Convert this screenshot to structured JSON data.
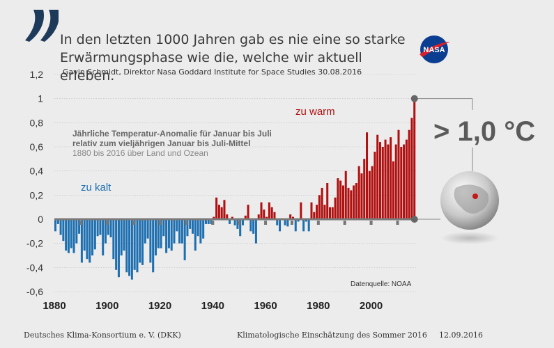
{
  "quote": {
    "line1": "In den letzten 1000 Jahren gab es nie eine so starke",
    "line2": "Erwärmungsphase wie die, welche wir aktuell erleben.",
    "source": "Gavin Schmidt, Direktor Nasa Goddard Institute for Space Studies 30.08.2016"
  },
  "logo": {
    "text": "NASA"
  },
  "callout": {
    "text": "> 1,0 °C"
  },
  "footer": {
    "left": "Deutsches Klima-Konsortium e. V. (DKK)",
    "center": "Klimatologische Einschätzung des Sommer 2016",
    "right": "12.09.2016"
  },
  "chart_data": {
    "type": "bar",
    "title_line1": "Jährliche Temperatur-Anomalie für Januar bis Juli",
    "title_line2": "relativ zum vieljährigen Januar bis Juli-Mittel",
    "subtitle": "1880 bis 2016 über Land und Ozean",
    "source_note": "Datenquelle: NOAA",
    "label_warm": "zu warm",
    "label_cold": "zu kalt",
    "ylim": [
      -0.6,
      1.2
    ],
    "yticks": [
      -0.6,
      -0.4,
      -0.2,
      0,
      0.2,
      0.4,
      0.6,
      0.8,
      1,
      1.2
    ],
    "ytick_labels": [
      "-0,6",
      "-0,4",
      "-0,2",
      "0",
      "0,2",
      "0,4",
      "0,6",
      "0,8",
      "1",
      "1,2"
    ],
    "xlim": [
      1880,
      2016
    ],
    "xticks": [
      1880,
      1900,
      1920,
      1940,
      1960,
      1980,
      2000
    ],
    "xtick_labels": [
      "1880",
      "1900",
      "1920",
      "1940",
      "1960",
      "1980",
      "2000"
    ],
    "grid": true,
    "colors": {
      "positive": "#b01010",
      "negative": "#1e6fb0",
      "axis": "#555555"
    },
    "x": [
      1880,
      1881,
      1882,
      1883,
      1884,
      1885,
      1886,
      1887,
      1888,
      1889,
      1890,
      1891,
      1892,
      1893,
      1894,
      1895,
      1896,
      1897,
      1898,
      1899,
      1900,
      1901,
      1902,
      1903,
      1904,
      1905,
      1906,
      1907,
      1908,
      1909,
      1910,
      1911,
      1912,
      1913,
      1914,
      1915,
      1916,
      1917,
      1918,
      1919,
      1920,
      1921,
      1922,
      1923,
      1924,
      1925,
      1926,
      1927,
      1928,
      1929,
      1930,
      1931,
      1932,
      1933,
      1934,
      1935,
      1936,
      1937,
      1938,
      1939,
      1940,
      1941,
      1942,
      1943,
      1944,
      1945,
      1946,
      1947,
      1948,
      1949,
      1950,
      1951,
      1952,
      1953,
      1954,
      1955,
      1956,
      1957,
      1958,
      1959,
      1960,
      1961,
      1962,
      1963,
      1964,
      1965,
      1966,
      1967,
      1968,
      1969,
      1970,
      1971,
      1972,
      1973,
      1974,
      1975,
      1976,
      1977,
      1978,
      1979,
      1980,
      1981,
      1982,
      1983,
      1984,
      1985,
      1986,
      1987,
      1988,
      1989,
      1990,
      1991,
      1992,
      1993,
      1994,
      1995,
      1996,
      1997,
      1998,
      1999,
      2000,
      2001,
      2002,
      2003,
      2004,
      2005,
      2006,
      2007,
      2008,
      2009,
      2010,
      2011,
      2012,
      2013,
      2014,
      2015,
      2016
    ],
    "values": [
      -0.1,
      -0.04,
      -0.13,
      -0.18,
      -0.26,
      -0.28,
      -0.24,
      -0.28,
      -0.2,
      -0.12,
      -0.36,
      -0.26,
      -0.33,
      -0.36,
      -0.3,
      -0.25,
      -0.14,
      -0.13,
      -0.3,
      -0.2,
      -0.13,
      -0.15,
      -0.33,
      -0.42,
      -0.48,
      -0.3,
      -0.26,
      -0.44,
      -0.47,
      -0.5,
      -0.42,
      -0.44,
      -0.36,
      -0.38,
      -0.2,
      -0.16,
      -0.36,
      -0.44,
      -0.3,
      -0.24,
      -0.24,
      -0.14,
      -0.28,
      -0.24,
      -0.26,
      -0.2,
      -0.1,
      -0.2,
      -0.2,
      -0.34,
      -0.14,
      -0.08,
      -0.12,
      -0.26,
      -0.14,
      -0.2,
      -0.16,
      -0.04,
      -0.04,
      -0.04,
      0.02,
      0.18,
      0.12,
      0.1,
      0.16,
      0.04,
      -0.04,
      0.02,
      -0.05,
      -0.08,
      -0.14,
      -0.05,
      0.03,
      0.12,
      -0.1,
      -0.12,
      -0.2,
      0.04,
      0.14,
      0.08,
      0.02,
      0.14,
      0.1,
      0.06,
      -0.05,
      -0.1,
      0.0,
      -0.05,
      -0.06,
      0.04,
      0.02,
      -0.1,
      -0.02,
      0.14,
      -0.1,
      -0.02,
      -0.1,
      0.14,
      0.06,
      0.12,
      0.2,
      0.26,
      0.12,
      0.3,
      0.1,
      0.1,
      0.18,
      0.34,
      0.32,
      0.28,
      0.4,
      0.26,
      0.24,
      0.28,
      0.3,
      0.44,
      0.38,
      0.5,
      0.72,
      0.4,
      0.44,
      0.56,
      0.7,
      0.64,
      0.6,
      0.66,
      0.62,
      0.68,
      0.48,
      0.62,
      0.74,
      0.6,
      0.62,
      0.66,
      0.74,
      0.84,
      1.0
    ]
  }
}
